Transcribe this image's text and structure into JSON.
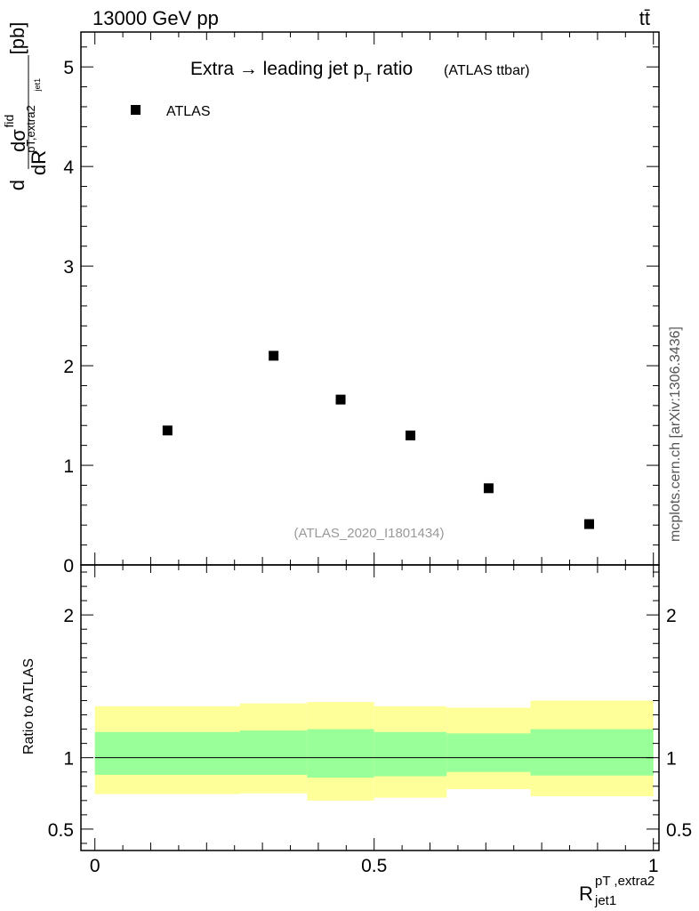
{
  "header": {
    "energy_label": "13000 GeV pp",
    "process_label": "tt̄"
  },
  "side_label": "mcplots.cern.ch [arXiv:1306.3436]",
  "chart_data": [
    {
      "type": "scatter",
      "panel": "main",
      "title_main": "Extra → leading jet p",
      "title_sub": "T",
      "title_tail": " ratio",
      "title_note": "(ATLAS ttbar)",
      "ylabel_parts": {
        "d": "d",
        "num": "dσ",
        "sup": "fid",
        "den": "dR",
        "small_sub": "pT,extra2",
        "tiny_sub": "jet1",
        "unit": "[pb]"
      },
      "legend": [
        {
          "name": "ATLAS",
          "marker": "square",
          "color": "#000000"
        }
      ],
      "analysis_id": "(ATLAS_2020_I1801434)",
      "xlim": [
        -0.025,
        1.01
      ],
      "ylim": [
        0,
        5.35
      ],
      "yticks": [
        0,
        1,
        2,
        3,
        4,
        5
      ],
      "yticklabels": [
        "0",
        "1",
        "2",
        "3",
        "4",
        "5"
      ],
      "series": [
        {
          "name": "ATLAS",
          "x": [
            0.13,
            0.32,
            0.44,
            0.565,
            0.705,
            0.885
          ],
          "y": [
            1.35,
            2.1,
            1.66,
            1.3,
            0.77,
            0.41
          ]
        }
      ]
    },
    {
      "type": "band",
      "panel": "ratio",
      "ylabel": "Ratio to ATLAS",
      "xlabel_main": "R",
      "xlabel_sup": "pT ,extra2",
      "xlabel_sub": "jet1",
      "xlim": [
        -0.025,
        1.01
      ],
      "ylim": [
        0.35,
        2.35
      ],
      "yticks": [
        0.5,
        1,
        2
      ],
      "yticklabels": [
        "0.5",
        "1",
        "2"
      ],
      "xticks": [
        0,
        0.5,
        1
      ],
      "xticklabels": [
        "0",
        "0.5",
        "1"
      ],
      "reference_line": 1.0,
      "bins": [
        {
          "lo": 0.0,
          "hi": 0.26,
          "yellow": [
            0.745,
            1.36
          ],
          "green": [
            0.88,
            1.18
          ]
        },
        {
          "lo": 0.26,
          "hi": 0.38,
          "yellow": [
            0.75,
            1.38
          ],
          "green": [
            0.88,
            1.19
          ]
        },
        {
          "lo": 0.38,
          "hi": 0.5,
          "yellow": [
            0.7,
            1.39
          ],
          "green": [
            0.86,
            1.2
          ]
        },
        {
          "lo": 0.5,
          "hi": 0.63,
          "yellow": [
            0.72,
            1.36
          ],
          "green": [
            0.87,
            1.18
          ]
        },
        {
          "lo": 0.63,
          "hi": 0.78,
          "yellow": [
            0.78,
            1.35
          ],
          "green": [
            0.9,
            1.17
          ]
        },
        {
          "lo": 0.78,
          "hi": 1.0,
          "yellow": [
            0.73,
            1.4
          ],
          "green": [
            0.875,
            1.2
          ]
        }
      ],
      "colors": {
        "yellow": "#ffff99",
        "green": "#99ff99"
      }
    }
  ]
}
